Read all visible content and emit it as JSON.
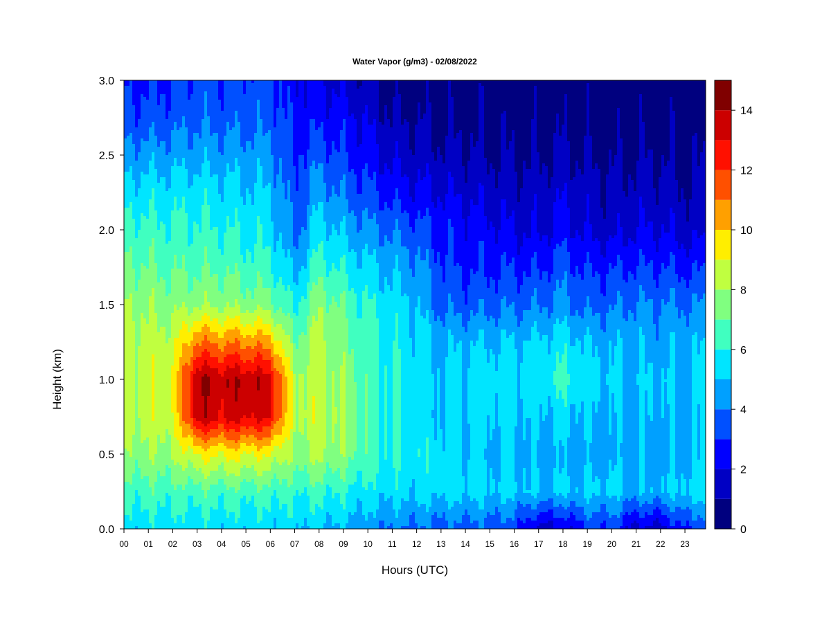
{
  "chart_data": {
    "type": "heatmap",
    "title": "Water Vapor (g/m3) - 02/08/2022",
    "xlabel": "Hours (UTC)",
    "ylabel": "Height (km)",
    "xlim": [
      0,
      23.85
    ],
    "ylim": [
      0,
      3.0
    ],
    "x_ticks": [
      0,
      1,
      2,
      3,
      4,
      5,
      6,
      7,
      8,
      9,
      10,
      11,
      12,
      13,
      14,
      15,
      16,
      17,
      18,
      19,
      20,
      21,
      22,
      23
    ],
    "x_tick_labels": [
      "00",
      "01",
      "02",
      "03",
      "04",
      "05",
      "06",
      "07",
      "08",
      "09",
      "10",
      "11",
      "12",
      "13",
      "14",
      "15",
      "16",
      "17",
      "18",
      "19",
      "20",
      "21",
      "22",
      "23"
    ],
    "y_ticks": [
      0.0,
      0.5,
      1.0,
      1.5,
      2.0,
      2.5,
      3.0
    ],
    "y_tick_labels": [
      "0.0",
      "0.5",
      "1.0",
      "1.5",
      "2.0",
      "2.5",
      "3.0"
    ],
    "colorbar": {
      "levels": [
        0,
        1,
        2,
        3,
        4,
        5,
        6,
        7,
        8,
        9,
        10,
        11,
        12,
        13,
        14,
        15
      ],
      "tick_values": [
        0,
        2,
        4,
        6,
        8,
        10,
        12,
        14
      ],
      "tick_labels": [
        "0",
        "2",
        "4",
        "6",
        "8",
        "10",
        "12",
        "14"
      ],
      "colors": [
        "#00007f",
        "#0000c4",
        "#0000ff",
        "#0050ff",
        "#00a0ff",
        "#00e5ff",
        "#40ffc0",
        "#80ff80",
        "#c0ff40",
        "#ffee00",
        "#ffa000",
        "#ff5000",
        "#ff1000",
        "#cc0000",
        "#800000"
      ]
    },
    "z_units": "g/m3",
    "z_range": [
      0,
      15
    ],
    "profile_heights_km": [
      0.0,
      0.25,
      0.5,
      0.75,
      1.0,
      1.25,
      1.5,
      1.75,
      2.0,
      2.25,
      2.5,
      2.75,
      3.0
    ],
    "profiles": [
      {
        "hour": 0.0,
        "values": [
          5.5,
          6.5,
          7.8,
          8.4,
          8.6,
          8.4,
          8.0,
          7.2,
          6.5,
          5.5,
          4.4,
          3.3,
          2.8
        ]
      },
      {
        "hour": 1.0,
        "values": [
          5.5,
          6.5,
          7.8,
          8.4,
          8.5,
          8.3,
          7.8,
          7.0,
          6.3,
          5.5,
          4.5,
          3.3,
          2.8
        ]
      },
      {
        "hour": 2.0,
        "values": [
          5.5,
          6.5,
          8.0,
          8.8,
          9.0,
          8.5,
          7.6,
          6.8,
          6.2,
          5.5,
          4.5,
          3.5,
          3.0
        ]
      },
      {
        "hour": 3.0,
        "values": [
          5.4,
          6.6,
          9.2,
          13.6,
          14.0,
          11.0,
          7.8,
          6.8,
          6.2,
          5.6,
          4.6,
          3.8,
          3.3
        ]
      },
      {
        "hour": 4.0,
        "values": [
          5.4,
          6.6,
          9.2,
          13.3,
          13.8,
          10.8,
          7.8,
          6.8,
          6.0,
          5.4,
          4.5,
          3.6,
          3.2
        ]
      },
      {
        "hour": 5.0,
        "values": [
          5.3,
          6.5,
          9.2,
          13.4,
          13.8,
          10.8,
          7.6,
          6.5,
          5.8,
          5.2,
          4.5,
          3.6,
          3.3
        ]
      },
      {
        "hour": 6.0,
        "values": [
          5.3,
          6.5,
          9.0,
          13.0,
          13.4,
          10.4,
          7.4,
          6.2,
          5.6,
          5.0,
          4.4,
          3.6,
          3.4
        ]
      },
      {
        "hour": 7.0,
        "values": [
          5.2,
          6.2,
          7.8,
          8.2,
          8.2,
          7.0,
          5.8,
          4.6,
          3.6,
          3.2,
          3.0,
          2.5,
          2.2
        ]
      },
      {
        "hour": 8.0,
        "values": [
          5.0,
          6.4,
          8.2,
          8.8,
          8.6,
          8.4,
          7.8,
          6.5,
          5.5,
          4.6,
          3.6,
          2.6,
          2.2
        ]
      },
      {
        "hour": 9.0,
        "values": [
          4.8,
          6.0,
          7.6,
          7.8,
          7.6,
          7.4,
          6.8,
          5.8,
          4.8,
          3.8,
          3.0,
          2.4,
          1.6
        ]
      },
      {
        "hour": 10.0,
        "values": [
          4.3,
          5.6,
          6.6,
          6.6,
          6.6,
          6.4,
          6.0,
          5.2,
          4.2,
          3.2,
          2.4,
          1.8,
          1.2
        ]
      },
      {
        "hour": 11.0,
        "values": [
          4.0,
          5.4,
          6.0,
          6.0,
          6.0,
          5.8,
          5.4,
          4.8,
          3.8,
          2.6,
          1.7,
          1.0,
          0.6
        ]
      },
      {
        "hour": 12.0,
        "values": [
          3.8,
          5.4,
          5.8,
          5.6,
          5.6,
          5.4,
          5.0,
          4.3,
          3.4,
          2.2,
          1.5,
          0.9,
          0.5
        ]
      },
      {
        "hour": 13.0,
        "values": [
          3.6,
          5.4,
          5.4,
          5.1,
          5.2,
          4.8,
          3.7,
          3.2,
          2.8,
          2.0,
          1.2,
          0.8,
          0.5
        ]
      },
      {
        "hour": 14.0,
        "values": [
          3.6,
          5.4,
          5.2,
          5.2,
          5.3,
          4.9,
          3.6,
          2.8,
          2.5,
          1.8,
          1.1,
          0.7,
          0.5
        ]
      },
      {
        "hour": 15.0,
        "values": [
          3.5,
          5.3,
          5.0,
          5.3,
          5.6,
          5.0,
          3.7,
          2.9,
          2.3,
          1.6,
          1.0,
          0.7,
          0.5
        ]
      },
      {
        "hour": 16.0,
        "values": [
          3.2,
          5.2,
          5.0,
          5.2,
          5.6,
          5.0,
          3.8,
          2.9,
          2.0,
          1.4,
          0.9,
          0.6,
          0.4
        ]
      },
      {
        "hour": 17.0,
        "values": [
          1.6,
          5.0,
          4.8,
          5.0,
          5.4,
          5.2,
          3.9,
          2.8,
          1.8,
          1.4,
          0.9,
          0.6,
          0.4
        ]
      },
      {
        "hour": 18.0,
        "values": [
          1.8,
          5.1,
          4.6,
          5.4,
          6.2,
          5.6,
          4.2,
          3.6,
          2.4,
          1.8,
          1.1,
          0.7,
          0.5
        ]
      },
      {
        "hour": 19.0,
        "values": [
          3.0,
          5.2,
          4.6,
          5.0,
          5.3,
          5.0,
          3.6,
          2.8,
          1.8,
          1.4,
          0.9,
          0.6,
          0.4
        ]
      },
      {
        "hour": 20.0,
        "values": [
          3.2,
          5.2,
          4.7,
          4.8,
          5.0,
          4.8,
          3.8,
          2.9,
          1.6,
          1.2,
          0.8,
          0.5,
          0.4
        ]
      },
      {
        "hour": 21.0,
        "values": [
          1.6,
          4.8,
          4.6,
          4.8,
          5.0,
          4.8,
          4.1,
          3.0,
          2.0,
          1.4,
          0.9,
          0.6,
          0.4
        ]
      },
      {
        "hour": 22.0,
        "values": [
          1.6,
          4.9,
          4.8,
          4.9,
          5.0,
          4.6,
          4.0,
          3.0,
          2.0,
          1.4,
          0.9,
          0.6,
          0.5
        ]
      },
      {
        "hour": 23.0,
        "values": [
          3.0,
          5.4,
          4.8,
          4.8,
          5.1,
          4.8,
          4.0,
          2.8,
          1.6,
          1.1,
          0.8,
          0.5,
          0.4
        ]
      },
      {
        "hour": 23.85,
        "values": [
          3.2,
          5.4,
          4.8,
          4.8,
          5.1,
          4.8,
          4.0,
          2.8,
          1.6,
          1.1,
          0.8,
          0.5,
          0.4
        ]
      }
    ]
  }
}
